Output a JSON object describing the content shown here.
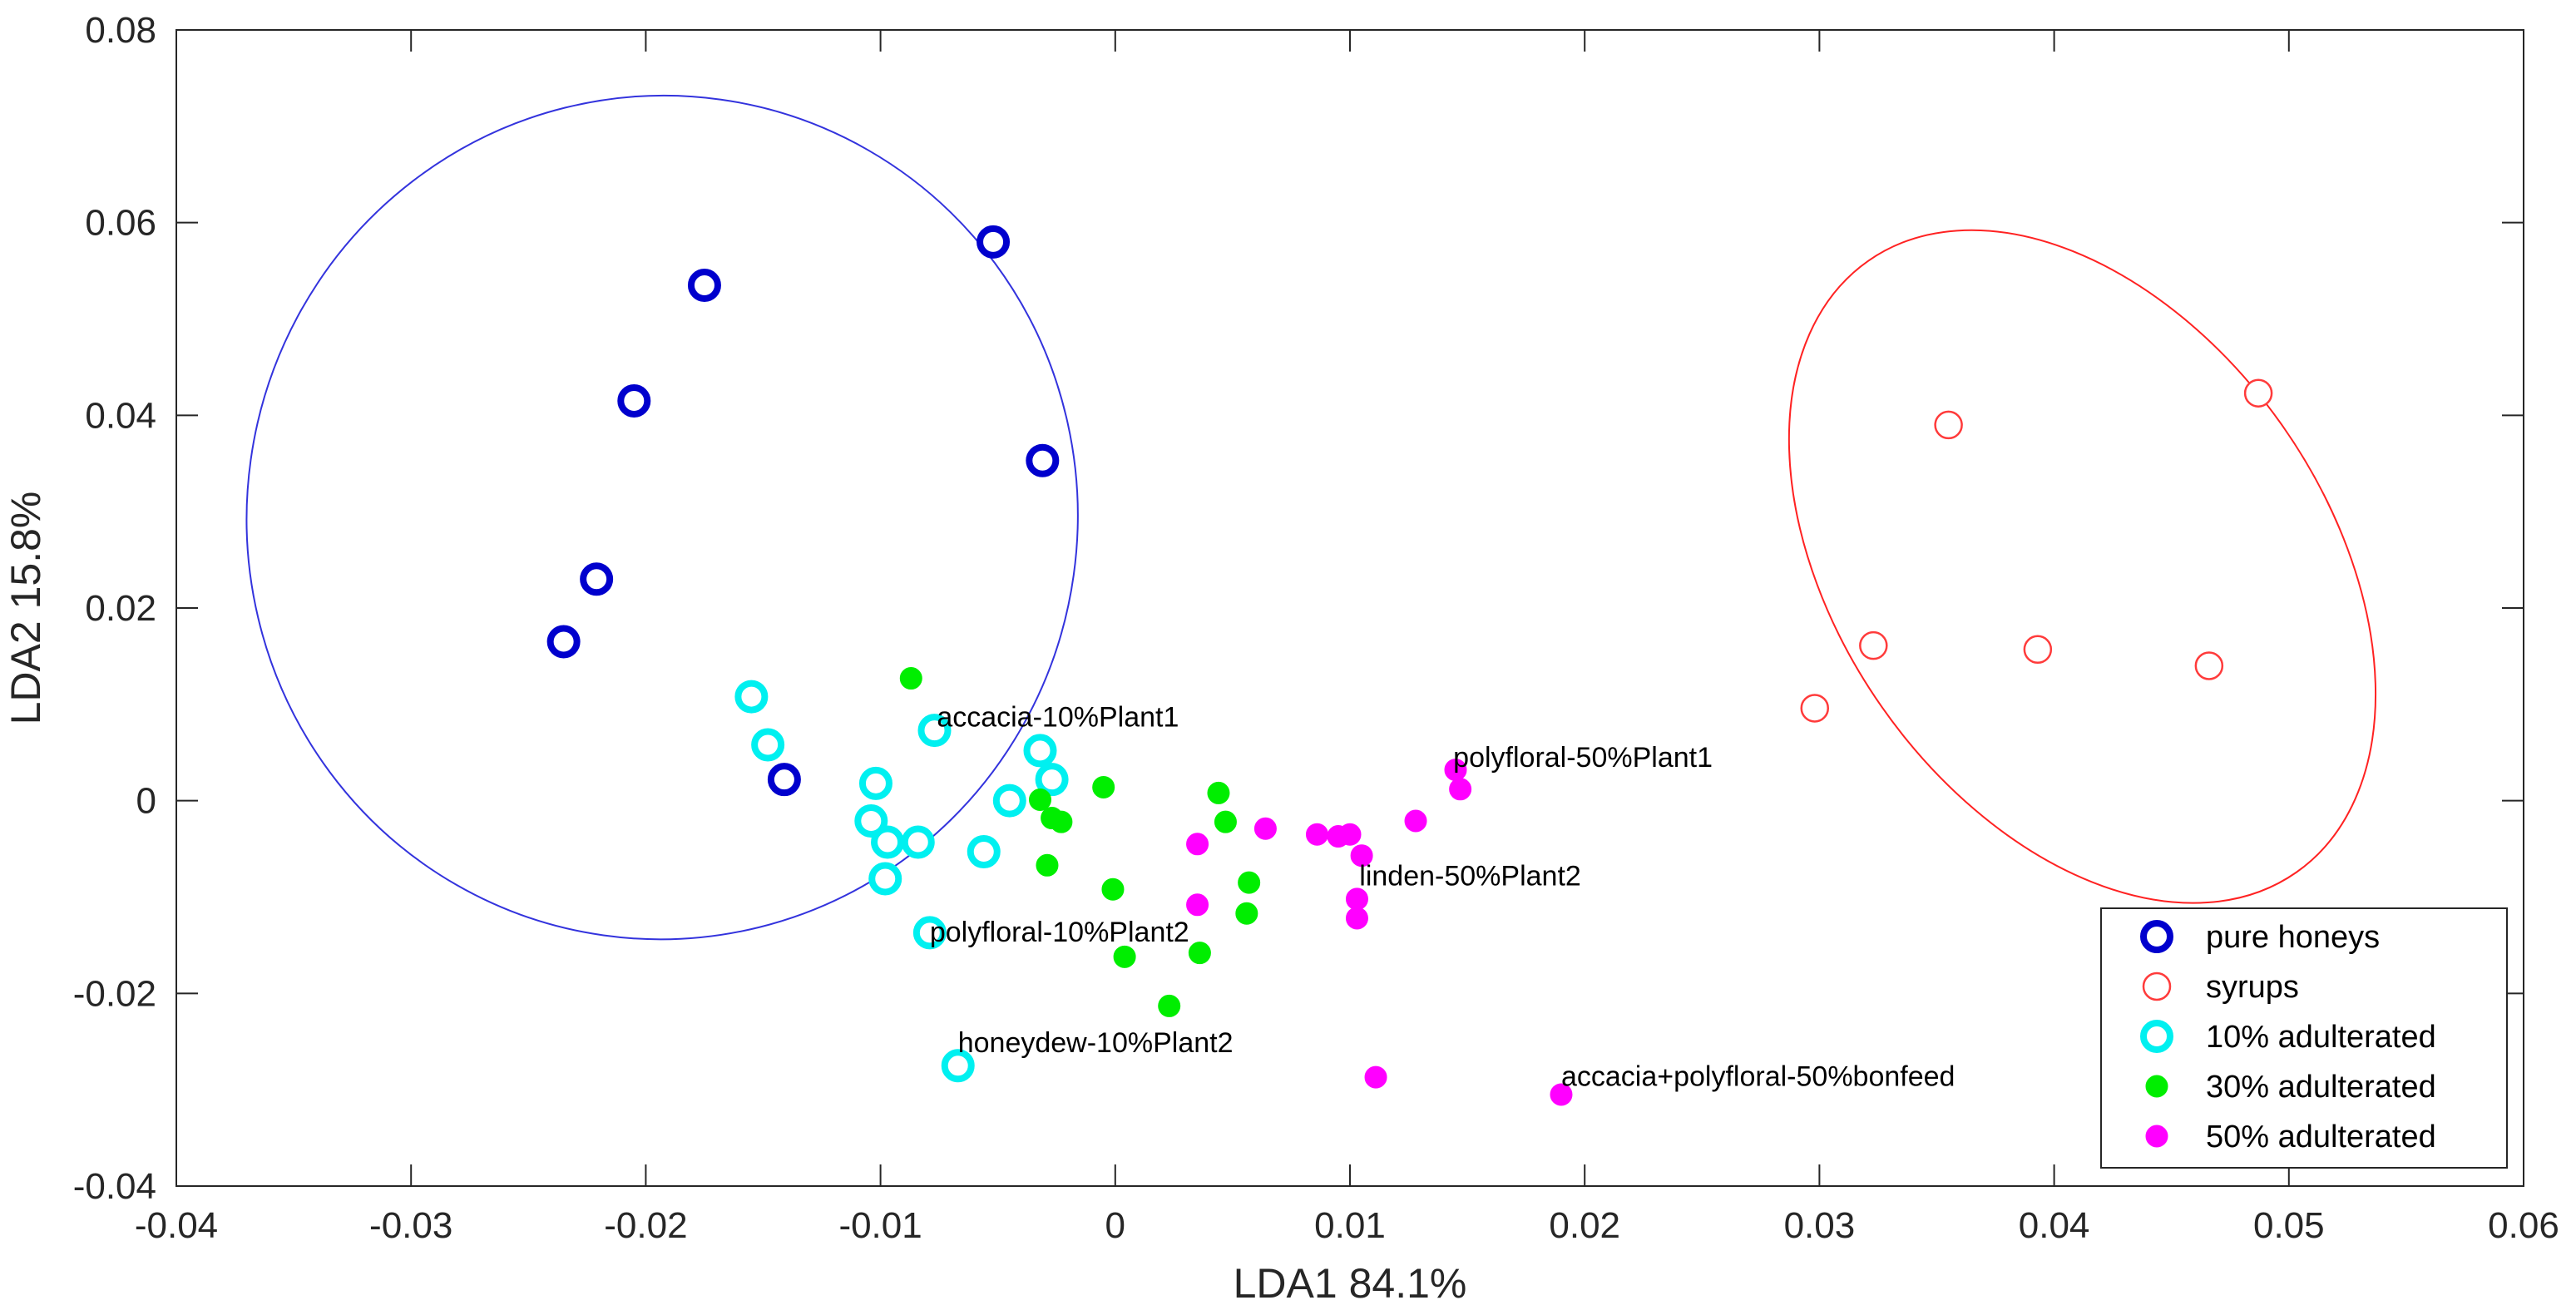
{
  "chart_data": {
    "type": "scatter",
    "xlabel": "LDA1  84.1%",
    "ylabel": "LDA2  15.8%",
    "xlim": [
      -0.04,
      0.06
    ],
    "ylim": [
      -0.04,
      0.08
    ],
    "xticks": [
      -0.04,
      -0.03,
      -0.02,
      -0.01,
      0,
      0.01,
      0.02,
      0.03,
      0.04,
      0.05,
      0.06
    ],
    "xtick_labels": [
      "-0.04",
      "-0.03",
      "-0.02",
      "-0.01",
      "0",
      "0.01",
      "0.02",
      "0.03",
      "0.04",
      "0.05",
      "0.06"
    ],
    "yticks": [
      -0.04,
      -0.02,
      0,
      0.02,
      0.04,
      0.06,
      0.08
    ],
    "ytick_labels": [
      "-0.04",
      "-0.02",
      "0",
      "0.02",
      "0.04",
      "0.06",
      "0.08"
    ],
    "grid": false,
    "legend_position": "bottom-right",
    "series": [
      {
        "name": "pure honeys",
        "marker": "open-circle-thick",
        "color": "#0000cd",
        "points": [
          [
            -0.0052,
            0.058
          ],
          [
            -0.0175,
            0.0535
          ],
          [
            -0.0205,
            0.0415
          ],
          [
            -0.0031,
            0.0353
          ],
          [
            -0.0221,
            0.023
          ],
          [
            -0.0235,
            0.0165
          ],
          [
            -0.0141,
            0.0022
          ]
        ]
      },
      {
        "name": "syrups",
        "marker": "open-circle-thin",
        "color": "#ff3b3b",
        "points": [
          [
            0.0355,
            0.039
          ],
          [
            0.0487,
            0.0423
          ],
          [
            0.0323,
            0.0161
          ],
          [
            0.0393,
            0.0157
          ],
          [
            0.0466,
            0.014
          ],
          [
            0.0298,
            0.0096
          ]
        ]
      },
      {
        "name": "10% adulterated",
        "marker": "open-circle-thick",
        "color": "#00f0f0",
        "points": [
          [
            -0.0155,
            0.0108
          ],
          [
            -0.0148,
            0.0058
          ],
          [
            -0.0077,
            0.0073
          ],
          [
            -0.0032,
            0.0052
          ],
          [
            -0.0027,
            0.0022
          ],
          [
            -0.0102,
            0.0018
          ],
          [
            -0.0045,
            0.0
          ],
          [
            -0.0104,
            -0.0021
          ],
          [
            -0.0097,
            -0.0043
          ],
          [
            -0.0084,
            -0.0043
          ],
          [
            -0.0056,
            -0.0053
          ],
          [
            -0.0098,
            -0.0081
          ],
          [
            -0.0079,
            -0.0137
          ],
          [
            -0.0067,
            -0.0275
          ]
        ]
      },
      {
        "name": "30% adulterated",
        "marker": "filled-circle",
        "color": "#00ee00",
        "points": [
          [
            -0.0087,
            0.0127
          ],
          [
            -0.0005,
            0.0014
          ],
          [
            0.0044,
            0.0008
          ],
          [
            -0.0032,
            0.0001
          ],
          [
            -0.0027,
            -0.0018
          ],
          [
            -0.0023,
            -0.0022
          ],
          [
            0.0047,
            -0.0022
          ],
          [
            -0.0029,
            -0.0067
          ],
          [
            -0.0001,
            -0.0092
          ],
          [
            0.0057,
            -0.0085
          ],
          [
            0.0056,
            -0.0117
          ],
          [
            0.0004,
            -0.0162
          ],
          [
            0.0036,
            -0.0158
          ],
          [
            0.0023,
            -0.0213
          ]
        ]
      },
      {
        "name": "50% adulterated",
        "marker": "filled-circle",
        "color": "#ff00ff",
        "points": [
          [
            0.0145,
            0.0032
          ],
          [
            0.0147,
            0.0012
          ],
          [
            0.0128,
            -0.0021
          ],
          [
            0.0064,
            -0.0029
          ],
          [
            0.0086,
            -0.0035
          ],
          [
            0.0095,
            -0.0037
          ],
          [
            0.01,
            -0.0035
          ],
          [
            0.0035,
            -0.0045
          ],
          [
            0.0105,
            -0.0057
          ],
          [
            0.0103,
            -0.0102
          ],
          [
            0.0035,
            -0.0108
          ],
          [
            0.0103,
            -0.0122
          ],
          [
            0.0111,
            -0.0287
          ],
          [
            0.019,
            -0.0305
          ]
        ]
      }
    ],
    "ellipses": [
      {
        "name": "pure honeys region",
        "color": "#3333dd",
        "cx": -0.0193,
        "cy": 0.0294,
        "rx": 0.0177,
        "ry": 0.0438,
        "rotation_deg": 8
      },
      {
        "name": "syrups region",
        "color": "#ff2222",
        "cx": 0.0412,
        "cy": 0.0243,
        "rx": 0.0159,
        "ry": 0.0254,
        "rotation_deg": 55
      }
    ],
    "annotations": [
      {
        "text": "accacia-10%Plant1",
        "x": -0.0076,
        "y": 0.0077
      },
      {
        "text": "polyfloral-50%Plant1",
        "x": 0.0144,
        "y": 0.0035
      },
      {
        "text": "linden-50%Plant2",
        "x": 0.0104,
        "y": -0.0088
      },
      {
        "text": "polyfloral-10%Plant2",
        "x": -0.0079,
        "y": -0.0146
      },
      {
        "text": "honeydew-10%Plant2",
        "x": -0.0067,
        "y": -0.0261
      },
      {
        "text": "accacia+polyfloral-50%bonfeed",
        "x": 0.019,
        "y": -0.0296
      }
    ]
  }
}
